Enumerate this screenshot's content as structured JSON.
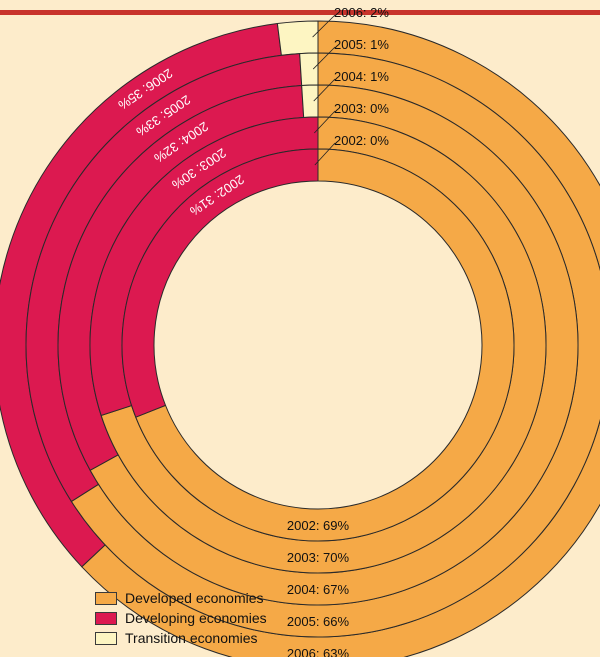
{
  "chart_data": {
    "type": "pie",
    "chart_style": "concentric donut rings, one ring per year, innermost = 2002",
    "categories": [
      "Developed economies",
      "Developing economies",
      "Transition economies"
    ],
    "colors": {
      "Developed economies": "#f5a947",
      "Developing economies": "#dc1950",
      "Transition economies": "#fdf5c2"
    },
    "rings": [
      {
        "year": "2002",
        "values": [
          69,
          31,
          0
        ],
        "labels": {
          "developed": "2002: 69%",
          "developing": "2002: 31%",
          "transition": "2002: 0%"
        }
      },
      {
        "year": "2003",
        "values": [
          70,
          30,
          0
        ],
        "labels": {
          "developed": "2003: 70%",
          "developing": "2003: 30%",
          "transition": "2003: 0%"
        }
      },
      {
        "year": "2004",
        "values": [
          67,
          32,
          1
        ],
        "labels": {
          "developed": "2004: 67%",
          "developing": "2004: 32%",
          "transition": "2004: 1%"
        }
      },
      {
        "year": "2005",
        "values": [
          66,
          33,
          1
        ],
        "labels": {
          "developed": "2005: 66%",
          "developing": "2005: 33%",
          "transition": "2005: 1%"
        }
      },
      {
        "year": "2006",
        "values": [
          63,
          35,
          2
        ],
        "labels": {
          "developed": "2006: 63%",
          "developing": "2006: 35%",
          "transition": "2006: 2%"
        }
      }
    ]
  },
  "legend": {
    "items": [
      {
        "label": "Developed economies",
        "color": "#f5a947"
      },
      {
        "label": "Developing economies",
        "color": "#dc1950"
      },
      {
        "label": "Transition economies",
        "color": "#fdf5c2"
      }
    ]
  },
  "style": {
    "background": "#fdeccb",
    "accent_rule": "#c8332b"
  }
}
